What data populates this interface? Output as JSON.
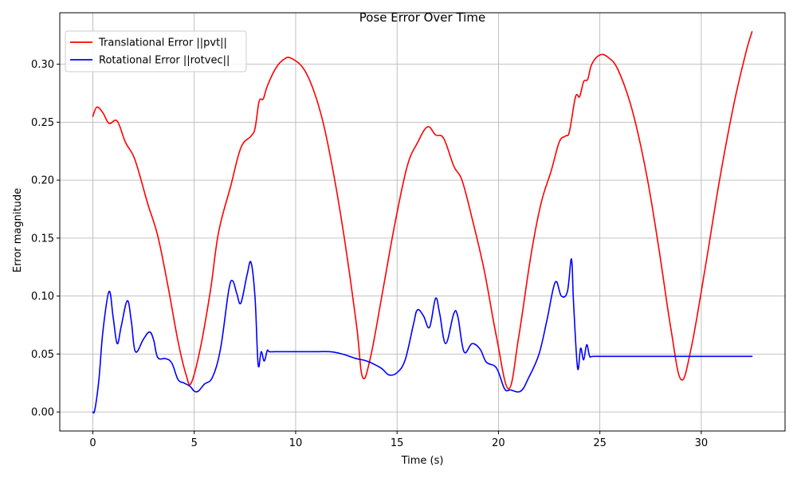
{
  "chart_data": {
    "type": "line",
    "title": "Pose Error Over Time",
    "xlabel": "Time (s)",
    "ylabel": "Error magnitude",
    "xlim": [
      -1.63,
      34.13
    ],
    "ylim": [
      -0.0164,
      0.3444
    ],
    "xticks": [
      0,
      5,
      10,
      15,
      20,
      25,
      30
    ],
    "xtick_labels": [
      "0",
      "5",
      "10",
      "15",
      "20",
      "25",
      "30"
    ],
    "yticks": [
      0.0,
      0.05,
      0.1,
      0.15,
      0.2,
      0.25,
      0.3
    ],
    "ytick_labels": [
      "0.00",
      "0.05",
      "0.10",
      "0.15",
      "0.20",
      "0.25",
      "0.30"
    ],
    "grid": true,
    "legend_position": "top-left",
    "series": [
      {
        "name": "Translational Error ||pvt||",
        "color": "#ff0000",
        "x": [
          0,
          0.2,
          0.5,
          0.8,
          1.2,
          1.6,
          2.0,
          2.3,
          2.7,
          3.2,
          3.7,
          4.2,
          4.6,
          4.85,
          5.3,
          5.8,
          6.2,
          6.8,
          7.3,
          7.8,
          8.0,
          8.2,
          8.4,
          8.6,
          9.0,
          9.4,
          9.8,
          10.5,
          11.2,
          11.8,
          12.4,
          13.0,
          13.3,
          13.7,
          14.3,
          14.9,
          15.5,
          16.0,
          16.5,
          16.9,
          17.3,
          17.8,
          18.2,
          18.7,
          19.3,
          19.9,
          20.5,
          21.0,
          21.6,
          22.1,
          22.6,
          23.0,
          23.3,
          23.5,
          23.8,
          24.0,
          24.2,
          24.4,
          24.6,
          25.0,
          25.4,
          25.9,
          26.6,
          27.3,
          27.9,
          28.5,
          29.0,
          29.5,
          30.2,
          30.9,
          31.6,
          32.2,
          32.5
        ],
        "values": [
          0.255,
          0.263,
          0.258,
          0.249,
          0.251,
          0.233,
          0.221,
          0.205,
          0.18,
          0.152,
          0.109,
          0.061,
          0.032,
          0.025,
          0.055,
          0.105,
          0.155,
          0.195,
          0.228,
          0.238,
          0.245,
          0.268,
          0.27,
          0.281,
          0.296,
          0.304,
          0.305,
          0.293,
          0.26,
          0.212,
          0.15,
          0.075,
          0.03,
          0.048,
          0.105,
          0.163,
          0.212,
          0.232,
          0.246,
          0.239,
          0.236,
          0.212,
          0.2,
          0.167,
          0.122,
          0.065,
          0.02,
          0.065,
          0.135,
          0.18,
          0.208,
          0.233,
          0.238,
          0.242,
          0.272,
          0.272,
          0.285,
          0.287,
          0.3,
          0.308,
          0.306,
          0.295,
          0.26,
          0.205,
          0.142,
          0.072,
          0.028,
          0.055,
          0.125,
          0.2,
          0.265,
          0.31,
          0.328
        ]
      },
      {
        "name": "Rotational Error ||rotvec||",
        "color": "#0000ff",
        "x": [
          0,
          0.1,
          0.3,
          0.5,
          0.8,
          1.0,
          1.2,
          1.4,
          1.7,
          1.9,
          2.1,
          2.5,
          2.8,
          3.0,
          3.2,
          3.6,
          3.9,
          4.2,
          4.5,
          4.8,
          5.0,
          5.2,
          5.5,
          5.9,
          6.3,
          6.7,
          6.9,
          7.1,
          7.3,
          7.6,
          7.8,
          8.0,
          8.15,
          8.3,
          8.45,
          8.6,
          8.7,
          9.0,
          10.0,
          11.0,
          11.7,
          12.3,
          13.0,
          13.5,
          14.2,
          14.6,
          15.0,
          15.4,
          15.8,
          16.0,
          16.3,
          16.6,
          16.9,
          17.1,
          17.4,
          17.8,
          18.0,
          18.3,
          18.7,
          19.1,
          19.4,
          19.9,
          20.3,
          20.6,
          21.1,
          21.5,
          22.0,
          22.4,
          22.8,
          23.1,
          23.4,
          23.6,
          23.7,
          23.9,
          24.05,
          24.2,
          24.35,
          24.5,
          24.7,
          26.0,
          28.0,
          30.0,
          32.0,
          32.5
        ],
        "values": [
          0.0,
          0.002,
          0.028,
          0.07,
          0.104,
          0.082,
          0.059,
          0.074,
          0.096,
          0.078,
          0.052,
          0.063,
          0.069,
          0.062,
          0.047,
          0.046,
          0.042,
          0.028,
          0.025,
          0.022,
          0.018,
          0.018,
          0.024,
          0.03,
          0.055,
          0.105,
          0.113,
          0.102,
          0.094,
          0.118,
          0.129,
          0.098,
          0.041,
          0.052,
          0.044,
          0.053,
          0.052,
          0.052,
          0.052,
          0.052,
          0.052,
          0.05,
          0.046,
          0.044,
          0.038,
          0.032,
          0.034,
          0.045,
          0.075,
          0.088,
          0.083,
          0.073,
          0.098,
          0.085,
          0.059,
          0.085,
          0.082,
          0.052,
          0.059,
          0.054,
          0.043,
          0.038,
          0.02,
          0.019,
          0.018,
          0.03,
          0.05,
          0.08,
          0.112,
          0.1,
          0.104,
          0.132,
          0.095,
          0.038,
          0.055,
          0.045,
          0.058,
          0.048,
          0.048,
          0.048,
          0.048,
          0.048,
          0.048,
          0.048
        ]
      }
    ]
  }
}
